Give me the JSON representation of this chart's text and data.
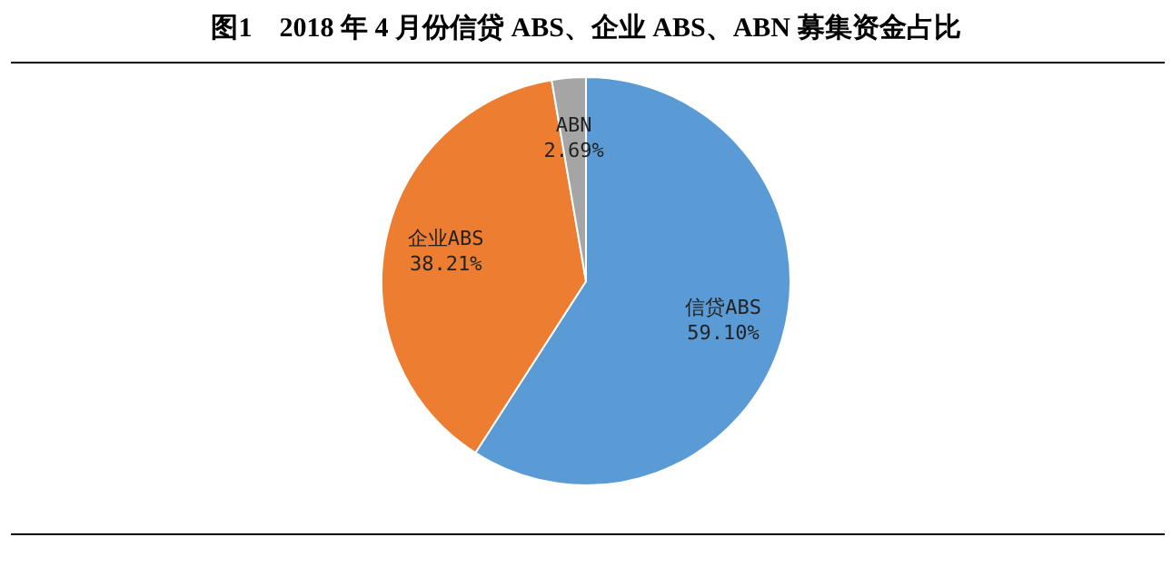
{
  "chart_data": {
    "type": "pie",
    "title": "图1　2018 年 4 月份信贷 ABS、企业 ABS、ABN 募集资金占比",
    "categories": [
      "信贷ABS",
      "企业ABS",
      "ABN"
    ],
    "values": [
      59.1,
      38.21,
      2.69
    ],
    "value_labels": [
      "59.10%",
      "38.21%",
      "2.69%"
    ],
    "colors": [
      "#5b9bd5",
      "#ed7d31",
      "#a5a5a5"
    ],
    "legend": false
  }
}
